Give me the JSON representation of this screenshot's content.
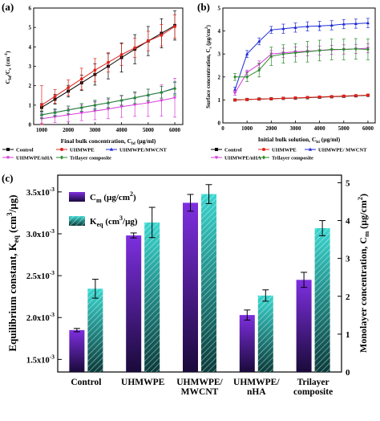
{
  "panel_labels": [
    "(a)",
    "(b)",
    "(c)"
  ],
  "chart_data": [
    {
      "panel": "(a)",
      "type": "line",
      "xlabel": "Final bulk concentration, C",
      "xlabel_sub": "bf",
      "xlabel_unit": " (µg/ml)",
      "ylabel": "C",
      "ylabel_sub1": "bf",
      "ylabel_mid": "/C",
      "ylabel_sub2": "s",
      "ylabel_unit": " (cm",
      "ylabel_sup": "-1",
      "ylabel_end": ")",
      "xlim": [
        700,
        6300
      ],
      "ylim": [
        0,
        6
      ],
      "xticks": [
        "1000",
        "2000",
        "3000",
        "4000",
        "5000",
        "6000"
      ],
      "yticks": [
        "0",
        "1",
        "2",
        "3",
        "4",
        "5",
        "6"
      ],
      "x": [
        1000,
        1500,
        2000,
        2500,
        3000,
        3500,
        4000,
        4500,
        5000,
        5500,
        6000
      ],
      "series": [
        {
          "name": "Control",
          "color": "#000000",
          "marker": "square",
          "values": [
            0.88,
            1.3,
            1.72,
            2.15,
            2.58,
            3.0,
            3.45,
            3.88,
            4.3,
            4.7,
            5.1
          ],
          "errors": [
            0.2,
            0.25,
            0.3,
            0.4,
            0.55,
            0.65,
            0.75,
            0.75,
            0.75,
            0.75,
            0.75
          ]
        },
        {
          "name": "UHMWPE",
          "color": "#e0241b",
          "marker": "circle",
          "values": [
            1.0,
            1.45,
            1.9,
            2.35,
            2.8,
            3.2,
            3.6,
            3.95,
            4.3,
            4.6,
            5.05
          ],
          "errors": [
            1.0,
            0.35,
            0.4,
            0.55,
            0.6,
            0.5,
            0.55,
            0.5,
            0.5,
            0.55,
            0.6
          ]
        },
        {
          "name": "UHMWPE/MWCNT",
          "color": "#1f2bd6",
          "marker": "triangle-up",
          "values": [
            0.5,
            0.62,
            0.75,
            0.88,
            1.0,
            1.12,
            1.25,
            1.38,
            1.52,
            1.66,
            1.88
          ],
          "errors": [
            0.15,
            0.15,
            0.2,
            0.2,
            0.2,
            0.25,
            0.25,
            0.3,
            0.3,
            0.3,
            0.3
          ]
        },
        {
          "name": "UHMWPE/nHA",
          "color": "#d43cd9",
          "marker": "triangle-down",
          "values": [
            0.3,
            0.4,
            0.5,
            0.6,
            0.7,
            0.8,
            0.92,
            1.02,
            1.12,
            1.24,
            1.38
          ],
          "errors": [
            0.25,
            0.3,
            0.35,
            0.4,
            0.45,
            0.5,
            0.55,
            0.6,
            0.7,
            0.8,
            1.0
          ]
        },
        {
          "name": "Trilayer composite",
          "color": "#2a8b2a",
          "marker": "diamond",
          "values": [
            0.5,
            0.62,
            0.75,
            0.88,
            1.0,
            1.12,
            1.25,
            1.38,
            1.52,
            1.66,
            1.85
          ],
          "errors": [
            0.2,
            0.2,
            0.2,
            0.2,
            0.25,
            0.25,
            0.25,
            0.3,
            0.3,
            0.3,
            0.35
          ]
        }
      ]
    },
    {
      "panel": "(b)",
      "type": "line",
      "xlabel": "Initial bulk solution, C",
      "xlabel_sub": "bi",
      "xlabel_unit": " (µg/ml)",
      "ylabel": "Surface concentration, C",
      "ylabel_sub": "s",
      "ylabel_unit": " (µg/cm",
      "ylabel_sup": "2",
      "ylabel_end": ")",
      "xlim": [
        0,
        6300
      ],
      "ylim": [
        0,
        5
      ],
      "xticks": [
        "0",
        "1000",
        "2000",
        "3000",
        "4000",
        "5000",
        "6000"
      ],
      "yticks": [
        "0",
        "1",
        "2",
        "3",
        "4",
        "5"
      ],
      "x": [
        500,
        1000,
        1500,
        2000,
        2500,
        3000,
        3500,
        4000,
        4500,
        5000,
        5500,
        6000
      ],
      "series": [
        {
          "name": "Control",
          "color": "#000000",
          "marker": "square",
          "values": [
            1.0,
            1.02,
            1.04,
            1.05,
            1.07,
            1.08,
            1.1,
            1.12,
            1.14,
            1.16,
            1.18,
            1.2
          ],
          "errors": [
            0.03,
            0.03,
            0.03,
            0.03,
            0.03,
            0.03,
            0.04,
            0.04,
            0.04,
            0.04,
            0.04,
            0.05
          ]
        },
        {
          "name": "UHMWPE",
          "color": "#e0241b",
          "marker": "circle",
          "values": [
            1.0,
            1.02,
            1.04,
            1.05,
            1.07,
            1.09,
            1.11,
            1.13,
            1.15,
            1.17,
            1.19,
            1.21
          ],
          "errors": [
            0.03,
            0.03,
            0.03,
            0.03,
            0.03,
            0.03,
            0.04,
            0.04,
            0.04,
            0.04,
            0.04,
            0.05
          ]
        },
        {
          "name": "UHMWPE/ MWCNT",
          "color": "#1f2bd6",
          "marker": "triangle-up",
          "values": [
            1.45,
            3.0,
            3.55,
            4.05,
            4.1,
            4.15,
            4.2,
            4.22,
            4.25,
            4.3,
            4.32,
            4.35
          ],
          "errors": [
            0.1,
            0.15,
            0.15,
            0.15,
            0.2,
            0.2,
            0.2,
            0.2,
            0.2,
            0.2,
            0.2,
            0.2
          ]
        },
        {
          "name": "UHMWPE/nHA",
          "color": "#d43cd9",
          "marker": "triangle-down",
          "values": [
            1.3,
            2.2,
            2.55,
            3.0,
            3.05,
            3.1,
            3.12,
            3.15,
            3.18,
            3.2,
            3.22,
            3.25
          ],
          "errors": [
            0.1,
            0.1,
            0.15,
            0.15,
            0.2,
            0.2,
            0.2,
            0.2,
            0.2,
            0.2,
            0.2,
            0.2
          ]
        },
        {
          "name": "Trilayer composite",
          "color": "#2a8b2a",
          "marker": "diamond",
          "values": [
            2.0,
            2.0,
            2.3,
            2.9,
            3.0,
            3.05,
            3.1,
            3.15,
            3.2,
            3.2,
            3.22,
            3.2
          ],
          "errors": [
            0.15,
            0.2,
            0.3,
            0.4,
            0.4,
            0.4,
            0.45,
            0.45,
            0.45,
            0.45,
            0.45,
            0.45
          ]
        }
      ]
    },
    {
      "panel": "(c)",
      "type": "bar",
      "categories": [
        [
          "Control"
        ],
        [
          "UHMWPE"
        ],
        [
          "UHMWPE/",
          "MWCNT"
        ],
        [
          "UHMWPE/",
          "nHA"
        ],
        [
          "Trilayer",
          "composite"
        ]
      ],
      "ylabel_left": "Equilibrium constant, K",
      "ylabel_left_sub": "eq",
      "ylabel_left_unit": " (cm",
      "ylabel_left_sup": "3",
      "ylabel_left_end": "/µg)",
      "ylabel_right": "Monolayer concentration, C",
      "ylabel_right_sub": "m",
      "ylabel_right_unit": " (µg/cm",
      "ylabel_right_sup": "2",
      "ylabel_right_end": ")",
      "ylim_left": [
        0.00135,
        0.0037
      ],
      "ylim_right": [
        0,
        5.2
      ],
      "yticks_left": [
        {
          "value": 0.0015,
          "label": "1.5x10",
          "exp": "-3"
        },
        {
          "value": 0.002,
          "label": "2.0x10",
          "exp": "-3"
        },
        {
          "value": 0.0025,
          "label": "2.5x10",
          "exp": "-3"
        },
        {
          "value": 0.003,
          "label": "3.0x10",
          "exp": "-3"
        },
        {
          "value": 0.0035,
          "label": "3.5x10",
          "exp": "-3"
        }
      ],
      "yticks_right": [
        "0",
        "1",
        "2",
        "3",
        "4",
        "5"
      ],
      "series": [
        {
          "name": "C",
          "name_sub": "m",
          "name_unit": " (µg/cm",
          "name_sup": "2",
          "name_end": ")",
          "axis": "left",
          "colors": [
            "#7e2fe0",
            "#1a0a3a"
          ],
          "values": [
            0.00185,
            0.00298,
            0.00337,
            0.00203,
            0.00245
          ],
          "errors": [
            2e-05,
            3e-05,
            0.0001,
            6e-05,
            9e-05
          ]
        },
        {
          "name": "K",
          "name_sub": "eq",
          "name_unit": " (cm",
          "name_sup": "3",
          "name_end": "/µg)",
          "axis": "right",
          "colors": [
            "#3ad6cf",
            "#0a3b3a"
          ],
          "values": [
            2.2,
            3.95,
            4.7,
            2.02,
            3.8
          ],
          "errors": [
            0.25,
            0.4,
            0.25,
            0.15,
            0.2
          ]
        }
      ]
    }
  ]
}
